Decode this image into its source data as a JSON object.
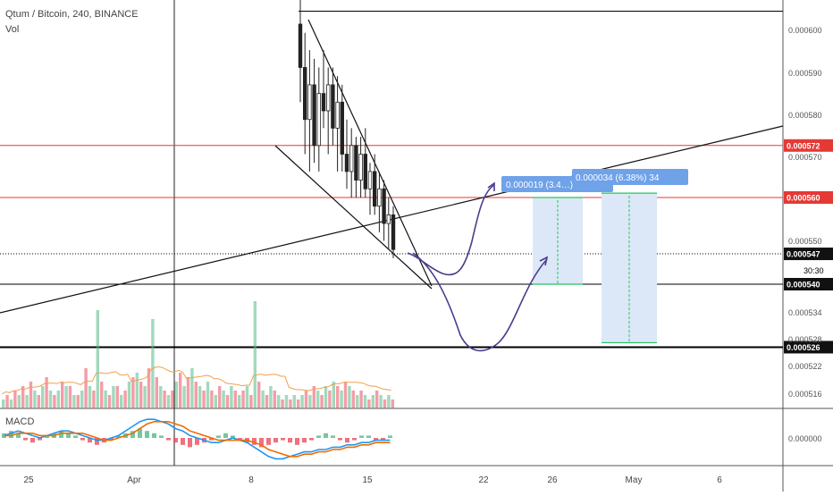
{
  "header": {
    "symbol_line": "Qtum / Bitcoin, 240, BINANCE",
    "volume_label": "Vol",
    "macd_label": "MACD"
  },
  "colors": {
    "up": "#53b987",
    "down": "#eb4d5c",
    "level_red": "#e53935",
    "level_black": "#000000",
    "path": "#4a3c8c",
    "measure_fill": "#dce8f7",
    "measure_green": "#22c55e",
    "label_blue": "#6fa2e8",
    "macd_line": "#2196f3",
    "signal_line": "#ef6c00"
  },
  "chart_data": {
    "type": "candlestick",
    "x_ticks": [
      "25",
      "Apr",
      "8",
      "15",
      "22",
      "26",
      "May",
      "6"
    ],
    "y_ticks": [
      "0.000600",
      "0.000590",
      "0.000580",
      "0.000570",
      "0.000560",
      "0.000550",
      "0.000540",
      "0.000534",
      "0.000528",
      "0.000522",
      "0.000516"
    ],
    "macd_y_tick": "0.000000",
    "levels": [
      {
        "label": "0.000572",
        "value": 0.000572,
        "color": "red"
      },
      {
        "label": "0.000560",
        "value": 0.00056,
        "color": "red"
      },
      {
        "label": "0.000547",
        "value": 0.000547,
        "color": "dotted"
      },
      {
        "label": "0.000540",
        "value": 0.00054,
        "color": "black"
      },
      {
        "label": "0.000526",
        "value": 0.000526,
        "color": "black"
      }
    ],
    "countdown": "30:30",
    "top_line_value": 0.000603,
    "measurements": [
      {
        "label": "0.000019 (3.4…)",
        "from": 0.00054,
        "to": 0.00056
      },
      {
        "label": "0.000034 (6.38%) 34",
        "from": 0.000527,
        "to": 0.000561
      }
    ],
    "candles": [
      {
        "o": 0.0006,
        "h": 0.000606,
        "l": 0.000582,
        "c": 0.00059
      },
      {
        "o": 0.00059,
        "h": 0.000598,
        "l": 0.00057,
        "c": 0.000578
      },
      {
        "o": 0.000578,
        "h": 0.000594,
        "l": 0.000566,
        "c": 0.000586
      },
      {
        "o": 0.000586,
        "h": 0.000592,
        "l": 0.000568,
        "c": 0.000572
      },
      {
        "o": 0.000572,
        "h": 0.00059,
        "l": 0.000566,
        "c": 0.000584
      },
      {
        "o": 0.000584,
        "h": 0.000594,
        "l": 0.000576,
        "c": 0.00058
      },
      {
        "o": 0.00058,
        "h": 0.00059,
        "l": 0.00057,
        "c": 0.000586
      },
      {
        "o": 0.000586,
        "h": 0.00059,
        "l": 0.000572,
        "c": 0.000576
      },
      {
        "o": 0.000576,
        "h": 0.000588,
        "l": 0.000566,
        "c": 0.000582
      },
      {
        "o": 0.000582,
        "h": 0.000586,
        "l": 0.000566,
        "c": 0.00057
      },
      {
        "o": 0.00057,
        "h": 0.000578,
        "l": 0.000562,
        "c": 0.000566
      },
      {
        "o": 0.000566,
        "h": 0.000576,
        "l": 0.00056,
        "c": 0.000572
      },
      {
        "o": 0.000572,
        "h": 0.000574,
        "l": 0.00056,
        "c": 0.000564
      },
      {
        "o": 0.000564,
        "h": 0.000574,
        "l": 0.00056,
        "c": 0.00057
      },
      {
        "o": 0.00057,
        "h": 0.000576,
        "l": 0.00056,
        "c": 0.000562
      },
      {
        "o": 0.000562,
        "h": 0.000568,
        "l": 0.000556,
        "c": 0.000566
      },
      {
        "o": 0.000566,
        "h": 0.00057,
        "l": 0.000556,
        "c": 0.000558
      },
      {
        "o": 0.000558,
        "h": 0.000566,
        "l": 0.000552,
        "c": 0.000562
      },
      {
        "o": 0.000562,
        "h": 0.000564,
        "l": 0.00055,
        "c": 0.000554
      },
      {
        "o": 0.000554,
        "h": 0.00056,
        "l": 0.000548,
        "c": 0.000556
      },
      {
        "o": 0.000556,
        "h": 0.000558,
        "l": 0.000546,
        "c": 0.000548
      }
    ],
    "volume": [
      {
        "v": 2,
        "up": true
      },
      {
        "v": 3,
        "up": false
      },
      {
        "v": 2,
        "up": true
      },
      {
        "v": 4,
        "up": false
      },
      {
        "v": 3,
        "up": true
      },
      {
        "v": 5,
        "up": false
      },
      {
        "v": 3,
        "up": true
      },
      {
        "v": 6,
        "up": false
      },
      {
        "v": 4,
        "up": true
      },
      {
        "v": 3,
        "up": false
      },
      {
        "v": 5,
        "up": true
      },
      {
        "v": 7,
        "up": false
      },
      {
        "v": 4,
        "up": true
      },
      {
        "v": 3,
        "up": false
      },
      {
        "v": 4,
        "up": true
      },
      {
        "v": 6,
        "up": false
      },
      {
        "v": 5,
        "up": true
      },
      {
        "v": 5,
        "up": false
      },
      {
        "v": 3,
        "up": true
      },
      {
        "v": 3,
        "up": false
      },
      {
        "v": 4,
        "up": true
      },
      {
        "v": 9,
        "up": false
      },
      {
        "v": 5,
        "up": true
      },
      {
        "v": 4,
        "up": false
      },
      {
        "v": 22,
        "up": true
      },
      {
        "v": 6,
        "up": false
      },
      {
        "v": 4,
        "up": true
      },
      {
        "v": 3,
        "up": false
      },
      {
        "v": 5,
        "up": true
      },
      {
        "v": 5,
        "up": false
      },
      {
        "v": 3,
        "up": true
      },
      {
        "v": 4,
        "up": false
      },
      {
        "v": 6,
        "up": true
      },
      {
        "v": 7,
        "up": false
      },
      {
        "v": 8,
        "up": true
      },
      {
        "v": 6,
        "up": false
      },
      {
        "v": 5,
        "up": true
      },
      {
        "v": 9,
        "up": false
      },
      {
        "v": 20,
        "up": true
      },
      {
        "v": 7,
        "up": false
      },
      {
        "v": 5,
        "up": true
      },
      {
        "v": 4,
        "up": false
      },
      {
        "v": 3,
        "up": true
      },
      {
        "v": 4,
        "up": false
      },
      {
        "v": 6,
        "up": true
      },
      {
        "v": 8,
        "up": false
      },
      {
        "v": 5,
        "up": true
      },
      {
        "v": 7,
        "up": false
      },
      {
        "v": 9,
        "up": true
      },
      {
        "v": 6,
        "up": false
      },
      {
        "v": 5,
        "up": true
      },
      {
        "v": 4,
        "up": false
      },
      {
        "v": 6,
        "up": true
      },
      {
        "v": 4,
        "up": false
      },
      {
        "v": 3,
        "up": true
      },
      {
        "v": 5,
        "up": false
      },
      {
        "v": 4,
        "up": true
      },
      {
        "v": 3,
        "up": false
      },
      {
        "v": 5,
        "up": true
      },
      {
        "v": 4,
        "up": false
      },
      {
        "v": 3,
        "up": true
      },
      {
        "v": 4,
        "up": false
      },
      {
        "v": 5,
        "up": true
      },
      {
        "v": 3,
        "up": false
      },
      {
        "v": 24,
        "up": true
      },
      {
        "v": 6,
        "up": false
      },
      {
        "v": 4,
        "up": true
      },
      {
        "v": 3,
        "up": false
      },
      {
        "v": 5,
        "up": true
      },
      {
        "v": 4,
        "up": false
      },
      {
        "v": 3,
        "up": true
      },
      {
        "v": 2,
        "up": false
      },
      {
        "v": 3,
        "up": true
      },
      {
        "v": 2,
        "up": false
      },
      {
        "v": 3,
        "up": true
      },
      {
        "v": 2,
        "up": false
      },
      {
        "v": 3,
        "up": true
      },
      {
        "v": 4,
        "up": false
      },
      {
        "v": 3,
        "up": true
      },
      {
        "v": 5,
        "up": false
      },
      {
        "v": 4,
        "up": true
      },
      {
        "v": 3,
        "up": false
      },
      {
        "v": 5,
        "up": true
      },
      {
        "v": 4,
        "up": false
      },
      {
        "v": 6,
        "up": true
      },
      {
        "v": 5,
        "up": false
      },
      {
        "v": 4,
        "up": true
      },
      {
        "v": 6,
        "up": false
      },
      {
        "v": 5,
        "up": true
      },
      {
        "v": 4,
        "up": false
      },
      {
        "v": 3,
        "up": true
      },
      {
        "v": 4,
        "up": false
      },
      {
        "v": 3,
        "up": true
      },
      {
        "v": 2,
        "up": false
      },
      {
        "v": 3,
        "up": true
      },
      {
        "v": 4,
        "up": false
      },
      {
        "v": 3,
        "up": true
      },
      {
        "v": 2,
        "up": false
      },
      {
        "v": 3,
        "up": true
      },
      {
        "v": 2,
        "up": false
      }
    ],
    "macd": {
      "hist": [
        2,
        3,
        2,
        -1,
        -2,
        -1,
        1,
        2,
        3,
        2,
        1,
        -1,
        -2,
        -3,
        -2,
        -1,
        1,
        2,
        3,
        4,
        3,
        2,
        1,
        -1,
        -2,
        -3,
        -4,
        -3,
        -2,
        -1,
        1,
        2,
        1,
        -1,
        -2,
        -3,
        -4,
        -3,
        -2,
        -1,
        -2,
        -3,
        -2,
        -1,
        1,
        2,
        1,
        -1,
        -2,
        -1,
        1,
        1,
        -1,
        -1,
        1
      ],
      "macd": [
        1,
        2,
        3,
        2,
        1,
        0,
        1,
        2,
        3,
        3,
        2,
        1,
        0,
        -1,
        -1,
        0,
        1,
        3,
        5,
        7,
        8,
        8,
        7,
        6,
        4,
        3,
        1,
        0,
        -1,
        -2,
        -2,
        -1,
        0,
        -1,
        -2,
        -4,
        -6,
        -8,
        -9,
        -9,
        -8,
        -7,
        -6,
        -6,
        -5,
        -5,
        -4,
        -4,
        -3,
        -3,
        -2,
        -2,
        -1,
        -1,
        -1
      ],
      "signal": [
        1,
        1,
        2,
        2,
        2,
        1,
        1,
        1,
        2,
        2,
        2,
        2,
        1,
        0,
        -1,
        -1,
        0,
        1,
        2,
        4,
        6,
        7,
        7,
        7,
        6,
        5,
        3,
        2,
        1,
        0,
        -1,
        -1,
        -1,
        -1,
        -1,
        -2,
        -3,
        -5,
        -6,
        -7,
        -8,
        -8,
        -7,
        -7,
        -6,
        -6,
        -5,
        -5,
        -4,
        -4,
        -3,
        -3,
        -2,
        -2,
        -2
      ]
    }
  }
}
